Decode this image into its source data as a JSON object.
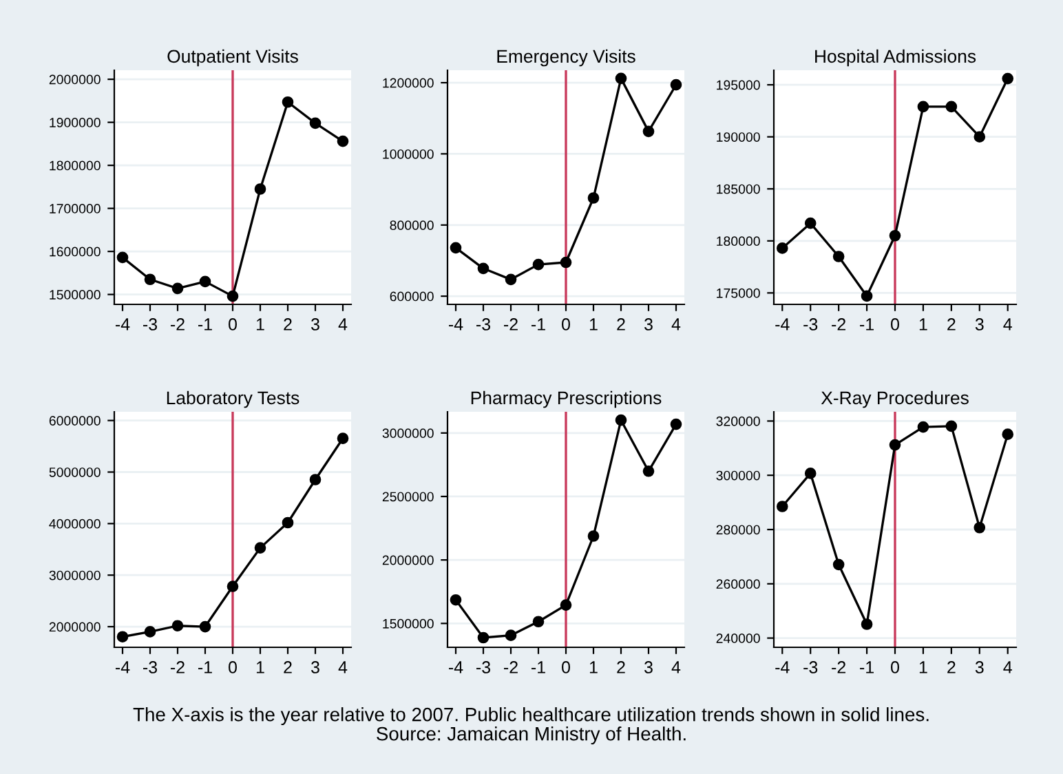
{
  "chart_data": [
    {
      "type": "line",
      "title": "Outpatient Visits",
      "x": [
        -4,
        -3,
        -2,
        -1,
        0,
        1,
        2,
        3,
        4
      ],
      "series": [
        {
          "color": "#000000",
          "values": [
            1586000,
            1535000,
            1514000,
            1530000,
            1496000,
            1745000,
            1947000,
            1898000,
            1856000
          ]
        }
      ],
      "xlim": [
        -4.3,
        4.3
      ],
      "xticks": [
        -4,
        -3,
        -2,
        -1,
        0,
        1,
        2,
        3,
        4
      ],
      "ylim": [
        1477000,
        2021000
      ],
      "yticks": [
        1500000,
        1600000,
        1700000,
        1800000,
        1900000,
        2000000
      ],
      "grid": "y",
      "marker": "circle",
      "line_style": "solid",
      "ref_lines": [
        {
          "axis": "x",
          "value": 0,
          "color": "#c8385a"
        }
      ],
      "annotations": [
        "The X-axis is the year relative to 2007. Public healthcare utilization trends shown in solid lines.",
        "Source: Jamaican Ministry of Health."
      ]
    },
    {
      "type": "line",
      "title": "Emergency Visits",
      "x": [
        -4,
        -3,
        -2,
        -1,
        0,
        1,
        2,
        3,
        4
      ],
      "series": [
        {
          "color": "#000000",
          "values": [
            736000,
            678000,
            647000,
            689000,
            695000,
            876000,
            1212000,
            1063000,
            1194000
          ]
        }
      ],
      "xlim": [
        -4.3,
        4.3
      ],
      "xticks": [
        -4,
        -3,
        -2,
        -1,
        0,
        1,
        2,
        3,
        4
      ],
      "ylim": [
        577000,
        1235000
      ],
      "yticks": [
        600000,
        800000,
        1000000,
        1200000
      ],
      "grid": "y",
      "marker": "circle",
      "line_style": "solid",
      "ref_lines": [
        {
          "axis": "x",
          "value": 0,
          "color": "#c8385a"
        }
      ]
    },
    {
      "type": "line",
      "title": "Hospital Admissions",
      "x": [
        -4,
        -3,
        -2,
        -1,
        0,
        1,
        2,
        3,
        4
      ],
      "series": [
        {
          "color": "#000000",
          "values": [
            179300,
            181700,
            178500,
            174700,
            180500,
            192900,
            192900,
            190000,
            195600
          ]
        }
      ],
      "xlim": [
        -4.3,
        4.3
      ],
      "xticks": [
        -4,
        -3,
        -2,
        -1,
        0,
        1,
        2,
        3,
        4
      ],
      "ylim": [
        173900,
        196400
      ],
      "yticks": [
        175000,
        180000,
        185000,
        190000,
        195000
      ],
      "grid": "y",
      "marker": "circle",
      "line_style": "solid",
      "ref_lines": [
        {
          "axis": "x",
          "value": 0,
          "color": "#c8385a"
        }
      ]
    },
    {
      "type": "line",
      "title": "Laboratory Tests",
      "x": [
        -4,
        -3,
        -2,
        -1,
        0,
        1,
        2,
        3,
        4
      ],
      "series": [
        {
          "color": "#000000",
          "values": [
            1804000,
            1902000,
            2018000,
            2000000,
            2782000,
            3529000,
            4018000,
            4853000,
            5653000
          ]
        }
      ],
      "xlim": [
        -4.3,
        4.3
      ],
      "xticks": [
        -4,
        -3,
        -2,
        -1,
        0,
        1,
        2,
        3,
        4
      ],
      "ylim": [
        1600000,
        6169000
      ],
      "yticks": [
        2000000,
        3000000,
        4000000,
        5000000,
        6000000
      ],
      "grid": "y",
      "marker": "circle",
      "line_style": "solid",
      "ref_lines": [
        {
          "axis": "x",
          "value": 0,
          "color": "#c8385a"
        }
      ]
    },
    {
      "type": "line",
      "title": "Pharmacy Prescriptions",
      "x": [
        -4,
        -3,
        -2,
        -1,
        0,
        1,
        2,
        3,
        4
      ],
      "series": [
        {
          "color": "#000000",
          "values": [
            1685000,
            1388000,
            1406000,
            1514000,
            1645000,
            2188000,
            3101000,
            2699000,
            3069000
          ]
        }
      ],
      "xlim": [
        -4.3,
        4.3
      ],
      "xticks": [
        -4,
        -3,
        -2,
        -1,
        0,
        1,
        2,
        3,
        4
      ],
      "ylim": [
        1312000,
        3167000
      ],
      "yticks": [
        1500000,
        2000000,
        2500000,
        3000000
      ],
      "grid": "y",
      "marker": "circle",
      "line_style": "solid",
      "ref_lines": [
        {
          "axis": "x",
          "value": 0,
          "color": "#c8385a"
        }
      ]
    },
    {
      "type": "line",
      "title": "X-Ray Procedures",
      "x": [
        -4,
        -3,
        -2,
        -1,
        0,
        1,
        2,
        3,
        4
      ],
      "series": [
        {
          "color": "#000000",
          "values": [
            288500,
            300700,
            267100,
            245100,
            311200,
            317800,
            318100,
            280700,
            315100
          ]
        }
      ],
      "xlim": [
        -4.3,
        4.3
      ],
      "xticks": [
        -4,
        -3,
        -2,
        -1,
        0,
        1,
        2,
        3,
        4
      ],
      "ylim": [
        236600,
        323400
      ],
      "yticks": [
        240000,
        260000,
        280000,
        300000,
        320000
      ],
      "grid": "y",
      "marker": "circle",
      "line_style": "solid",
      "ref_lines": [
        {
          "axis": "x",
          "value": 0,
          "color": "#c8385a"
        }
      ]
    }
  ]
}
